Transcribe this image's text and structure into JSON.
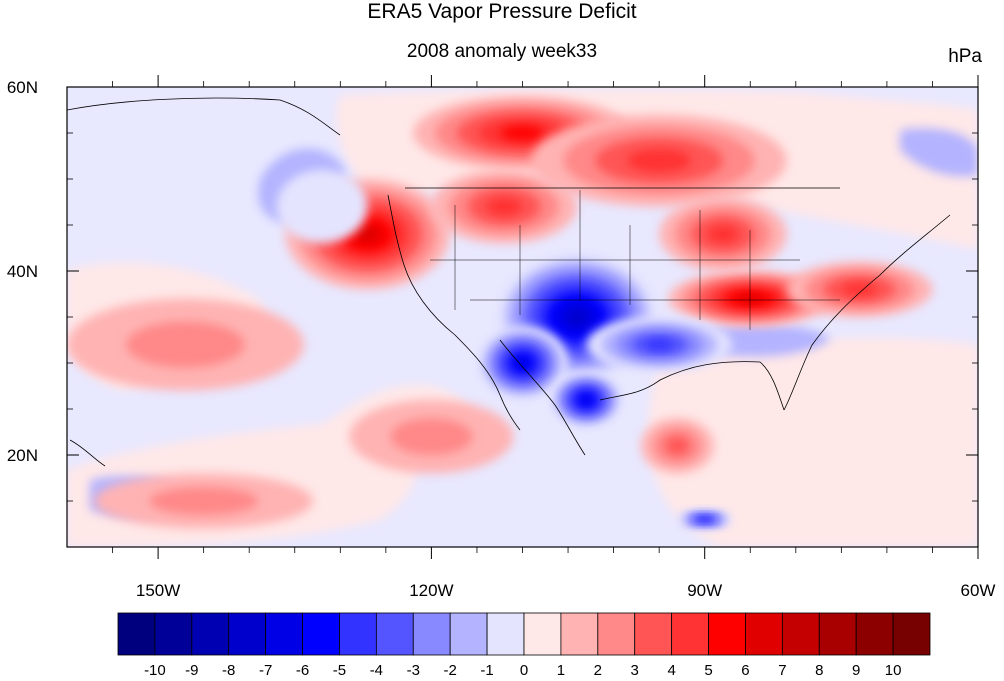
{
  "title": "ERA5 Vapor Pressure Deficit",
  "subtitle": "2008 anomaly week33",
  "units": "hPa",
  "map": {
    "lon_range": [
      -160,
      -60
    ],
    "lat_range": [
      10,
      60
    ],
    "x_ticks": [
      {
        "lon": -150,
        "label": "150W"
      },
      {
        "lon": -120,
        "label": "120W"
      },
      {
        "lon": -90,
        "label": "90W"
      },
      {
        "lon": -60,
        "label": "60W"
      }
    ],
    "y_ticks": [
      {
        "lat": 60,
        "label": "60N"
      },
      {
        "lat": 40,
        "label": "40N"
      },
      {
        "lat": 20,
        "label": "20N"
      }
    ],
    "field_features": [
      {
        "kind": "positive",
        "lon": -127,
        "lat": 44,
        "rx": 9,
        "ry": 6,
        "value": 6
      },
      {
        "kind": "positive",
        "lon": -112,
        "lat": 47,
        "rx": 8,
        "ry": 4,
        "value": 4
      },
      {
        "kind": "positive",
        "lon": -110,
        "lat": 55,
        "rx": 12,
        "ry": 4,
        "value": 5
      },
      {
        "kind": "positive",
        "lon": -95,
        "lat": 52,
        "rx": 14,
        "ry": 5,
        "value": 4
      },
      {
        "kind": "positive",
        "lon": -85,
        "lat": 37,
        "rx": 9,
        "ry": 3,
        "value": 6
      },
      {
        "kind": "positive",
        "lon": -88,
        "lat": 44,
        "rx": 7,
        "ry": 4,
        "value": 4
      },
      {
        "kind": "positive",
        "lon": -73,
        "lat": 38,
        "rx": 8,
        "ry": 3,
        "value": 4
      },
      {
        "kind": "positive",
        "lon": -147,
        "lat": 32,
        "rx": 13,
        "ry": 5,
        "value": 2
      },
      {
        "kind": "positive",
        "lon": -145,
        "lat": 15,
        "rx": 12,
        "ry": 3,
        "value": 2
      },
      {
        "kind": "positive",
        "lon": -120,
        "lat": 22,
        "rx": 9,
        "ry": 4,
        "value": 2
      },
      {
        "kind": "positive",
        "lon": -93,
        "lat": 21,
        "rx": 4,
        "ry": 3,
        "value": 3
      },
      {
        "kind": "negative",
        "lon": -104,
        "lat": 35,
        "rx": 9,
        "ry": 7,
        "value": -8
      },
      {
        "kind": "negative",
        "lon": -110,
        "lat": 30,
        "rx": 5,
        "ry": 4,
        "value": -7
      },
      {
        "kind": "negative",
        "lon": -95,
        "lat": 32,
        "rx": 8,
        "ry": 3,
        "value": -5
      },
      {
        "kind": "negative",
        "lon": -103,
        "lat": 26,
        "rx": 4,
        "ry": 3,
        "value": -7
      },
      {
        "kind": "negative",
        "lon": -132,
        "lat": 47,
        "rx": 5,
        "ry": 4,
        "value": -1
      },
      {
        "kind": "negative",
        "lon": -90,
        "lat": 13,
        "rx": 3,
        "ry": 1,
        "value": -6
      }
    ]
  },
  "colorbar": {
    "bounds": [
      "-10",
      "-9",
      "-8",
      "-7",
      "-6",
      "-5",
      "-4",
      "-3",
      "-2",
      "-1",
      "0",
      "1",
      "2",
      "3",
      "4",
      "5",
      "6",
      "7",
      "8",
      "9",
      "10"
    ],
    "colors": [
      "#00007f",
      "#000099",
      "#0000b3",
      "#0000cc",
      "#0000e6",
      "#0000ff",
      "#3333ff",
      "#5555ff",
      "#8888ff",
      "#b3b3ff",
      "#e4e4ff",
      "#ffe8e8",
      "#ffb3b3",
      "#ff8888",
      "#ff5555",
      "#ff3333",
      "#ff0000",
      "#e00000",
      "#c40000",
      "#a80000",
      "#8c0000",
      "#770000"
    ]
  }
}
